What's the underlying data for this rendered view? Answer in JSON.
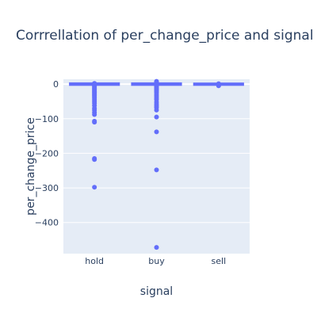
{
  "chart_data": {
    "type": "box",
    "title": "Corrrellation of per_change_price and signal",
    "xlabel": "signal",
    "ylabel": "per_change_price",
    "categories": [
      "hold",
      "buy",
      "sell"
    ],
    "ylim": [
      -490,
      14
    ],
    "yticks": [
      0,
      -100,
      -200,
      -300,
      -400
    ],
    "ytick_labels": [
      "0",
      "−100",
      "−200",
      "−300",
      "−400"
    ],
    "grid": true,
    "legend": "none",
    "colors": {
      "plot_bg": "#e5ecf6",
      "grid": "#ffffff",
      "marker": "#636efa",
      "text": "#2a3f5f"
    },
    "series": [
      {
        "category": "hold",
        "box": {
          "q1": -1,
          "median": 0,
          "q3": 1
        },
        "outliers": [
          2,
          1,
          -3,
          -6,
          -9,
          -12,
          -15,
          -18,
          -21,
          -24,
          -27,
          -30,
          -33,
          -36,
          -40,
          -45,
          -50,
          -55,
          -62,
          -70,
          -75,
          -82,
          -88,
          -107,
          -110,
          -215,
          -218,
          -298
        ]
      },
      {
        "category": "buy",
        "box": {
          "q1": -1,
          "median": 0,
          "q3": 1
        },
        "outliers": [
          8,
          6,
          4,
          3,
          -3,
          -6,
          -9,
          -12,
          -15,
          -18,
          -21,
          -25,
          -30,
          -35,
          -40,
          -45,
          -52,
          -58,
          -63,
          -68,
          -75,
          -95,
          -138,
          -248,
          -472
        ]
      },
      {
        "category": "sell",
        "box": {
          "q1": -1,
          "median": 0,
          "q3": 0.5
        },
        "outliers": [
          1,
          -2,
          -4,
          -5
        ]
      }
    ]
  }
}
